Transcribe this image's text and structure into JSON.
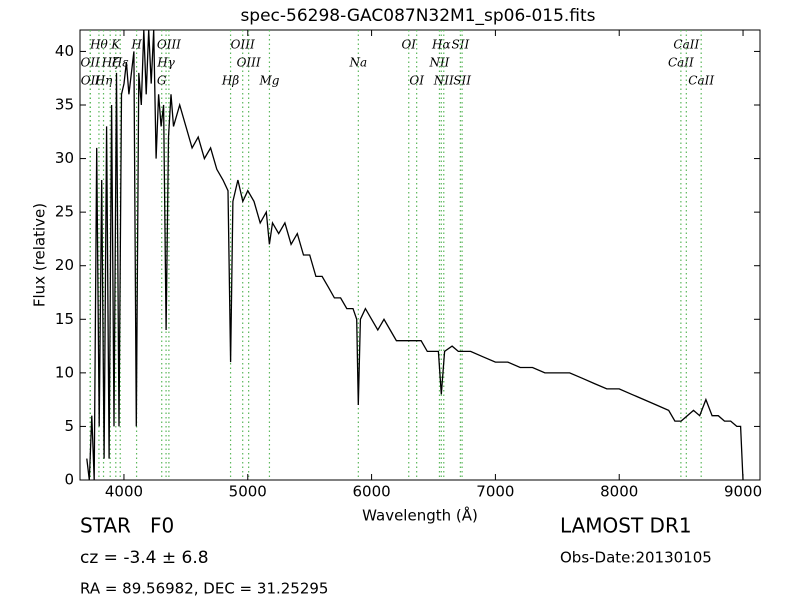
{
  "chart_data": {
    "type": "line",
    "title": "spec-56298-GAC087N32M1_sp06-015.fits",
    "x_label": "Wavelength (Å)",
    "y_label": "Flux (relative)",
    "xlim": [
      3645,
      9137
    ],
    "ylim": [
      0,
      42
    ],
    "xticks": [
      4000,
      5000,
      6000,
      7000,
      8000,
      9000
    ],
    "yticks": [
      0,
      5,
      10,
      15,
      20,
      25,
      30,
      35,
      40
    ],
    "line_color": "#5cb85c",
    "series": [
      {
        "name": "flux",
        "color": "#000000",
        "x": [
          3700,
          3720,
          3740,
          3760,
          3780,
          3800,
          3820,
          3840,
          3860,
          3880,
          3900,
          3920,
          3940,
          3960,
          3980,
          4000,
          4020,
          4040,
          4060,
          4080,
          4100,
          4120,
          4140,
          4160,
          4180,
          4200,
          4220,
          4240,
          4260,
          4280,
          4300,
          4320,
          4340,
          4360,
          4380,
          4400,
          4450,
          4500,
          4550,
          4600,
          4650,
          4700,
          4750,
          4800,
          4840,
          4861,
          4880,
          4920,
          4960,
          5000,
          5050,
          5100,
          5150,
          5175,
          5200,
          5250,
          5300,
          5350,
          5400,
          5450,
          5500,
          5550,
          5600,
          5650,
          5700,
          5750,
          5800,
          5850,
          5880,
          5893,
          5910,
          5950,
          6000,
          6050,
          6100,
          6150,
          6200,
          6250,
          6300,
          6350,
          6400,
          6450,
          6500,
          6540,
          6563,
          6590,
          6650,
          6700,
          6750,
          6800,
          6900,
          7000,
          7100,
          7200,
          7300,
          7400,
          7500,
          7600,
          7700,
          7800,
          7900,
          8000,
          8100,
          8200,
          8300,
          8400,
          8450,
          8500,
          8550,
          8600,
          8650,
          8700,
          8750,
          8800,
          8850,
          8900,
          8950,
          8980,
          9000
        ],
        "values": [
          2,
          0,
          6,
          0,
          31,
          5,
          28,
          2,
          33,
          2,
          35,
          5,
          38,
          5,
          36,
          37,
          39,
          36,
          38,
          40,
          5,
          38,
          35,
          42,
          36,
          42,
          37,
          42,
          30,
          36,
          33,
          35,
          14,
          32,
          36,
          33,
          35,
          33,
          31,
          32,
          30,
          31,
          29,
          28,
          27,
          11,
          26,
          28,
          26,
          27,
          26,
          24,
          25,
          22,
          24,
          23,
          24,
          22,
          23,
          21,
          21,
          19,
          19,
          18,
          17,
          17,
          16,
          16,
          15,
          7,
          15,
          16,
          15,
          14,
          15,
          14,
          13,
          13,
          13,
          13,
          13,
          12,
          12,
          12,
          8,
          12,
          12.5,
          12,
          12,
          12,
          11.5,
          11,
          11,
          10.5,
          10.5,
          10,
          10,
          10,
          9.5,
          9,
          8.5,
          8.5,
          8,
          7.5,
          7,
          6.5,
          5.5,
          5.5,
          6,
          6.5,
          6,
          7.5,
          6,
          6,
          5.5,
          5.5,
          5,
          5,
          0
        ]
      }
    ],
    "lines": [
      {
        "label": "Hθ",
        "x": 3798
      },
      {
        "label": "OII",
        "x": 3727
      },
      {
        "label": "OII",
        "x": 3729
      },
      {
        "label": "Hη",
        "x": 3835
      },
      {
        "label": "Hζ",
        "x": 3889
      },
      {
        "label": "K",
        "x": 3934
      },
      {
        "label": "Hε",
        "x": 3970
      },
      {
        "label": "H",
        "x": 4102
      },
      {
        "label": "G",
        "x": 4305
      },
      {
        "label": "Hγ",
        "x": 4340
      },
      {
        "label": "OIII",
        "x": 4363
      },
      {
        "label": "Hβ",
        "x": 4861
      },
      {
        "label": "OIII",
        "x": 4959
      },
      {
        "label": "OIII",
        "x": 5007
      },
      {
        "label": "Mg",
        "x": 5175
      },
      {
        "label": "Na",
        "x": 5893
      },
      {
        "label": "OI",
        "x": 6300
      },
      {
        "label": "OI",
        "x": 6364
      },
      {
        "label": "NII",
        "x": 6548
      },
      {
        "label": "Hα",
        "x": 6563
      },
      {
        "label": "NII",
        "x": 6583
      },
      {
        "label": "SII",
        "x": 6717
      },
      {
        "label": "SII",
        "x": 6731
      },
      {
        "label": "CaII",
        "x": 8498
      },
      {
        "label": "CaII",
        "x": 8542
      },
      {
        "label": "CaII",
        "x": 8662
      }
    ],
    "annotations": [
      "STAR   F0",
      "cz = -3.4 ± 6.8",
      "RA = 89.56982, DEC = 31.25295",
      "LAMOST DR1",
      "Obs-Date:20130105"
    ]
  }
}
